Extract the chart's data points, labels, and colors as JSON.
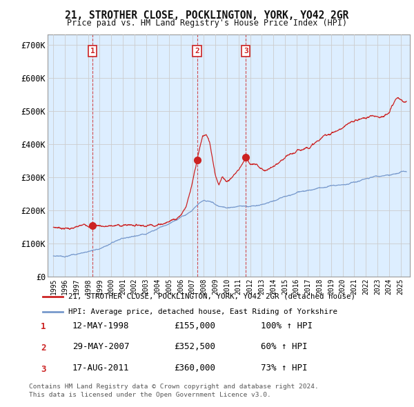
{
  "title": "21, STROTHER CLOSE, POCKLINGTON, YORK, YO42 2GR",
  "subtitle": "Price paid vs. HM Land Registry's House Price Index (HPI)",
  "legend_line1": "21, STROTHER CLOSE, POCKLINGTON, YORK, YO42 2GR (detached house)",
  "legend_line2": "HPI: Average price, detached house, East Riding of Yorkshire",
  "footer1": "Contains HM Land Registry data © Crown copyright and database right 2024.",
  "footer2": "This data is licensed under the Open Government Licence v3.0.",
  "transactions": [
    {
      "num": 1,
      "date": "12-MAY-1998",
      "price": "£155,000",
      "pct": "100% ↑ HPI",
      "year": 1998.37,
      "value": 155000
    },
    {
      "num": 2,
      "date": "29-MAY-2007",
      "price": "£352,500",
      "pct": "60% ↑ HPI",
      "year": 2007.41,
      "value": 352500
    },
    {
      "num": 3,
      "date": "17-AUG-2011",
      "price": "£360,000",
      "pct": "73% ↑ HPI",
      "year": 2011.63,
      "value": 360000
    }
  ],
  "red_line_color": "#cc2222",
  "blue_line_color": "#7799cc",
  "grid_color": "#cccccc",
  "chart_bg_color": "#ddeeff",
  "background_color": "#ffffff",
  "ylim": [
    0,
    730000
  ],
  "yticks": [
    0,
    100000,
    200000,
    300000,
    400000,
    500000,
    600000,
    700000
  ],
  "ytick_labels": [
    "£0",
    "£100K",
    "£200K",
    "£300K",
    "£400K",
    "£500K",
    "£600K",
    "£700K"
  ],
  "xlim_start": 1994.5,
  "xlim_end": 2025.8,
  "red_knots_x": [
    1995,
    1996,
    1997,
    1998.37,
    1999,
    2000,
    2001,
    2002,
    2003,
    2004,
    2005,
    2006,
    2006.5,
    2007.0,
    2007.41,
    2007.7,
    2007.9,
    2008.2,
    2008.5,
    2009.0,
    2009.3,
    2009.6,
    2010.0,
    2010.5,
    2011.0,
    2011.3,
    2011.63,
    2012,
    2012.5,
    2013,
    2013.5,
    2014,
    2014.5,
    2015,
    2015.5,
    2016,
    2016.5,
    2017,
    2017.5,
    2018,
    2018.5,
    2019,
    2019.5,
    2020,
    2020.5,
    2021,
    2021.3,
    2021.6,
    2022,
    2022.5,
    2023,
    2023.5,
    2024,
    2024.3,
    2024.6,
    2025.0,
    2025.3
  ],
  "red_knots_y": [
    148000,
    149000,
    150000,
    155000,
    157000,
    159000,
    161000,
    165000,
    170000,
    178000,
    192000,
    215000,
    240000,
    290000,
    352500,
    400000,
    430000,
    440000,
    420000,
    335000,
    310000,
    330000,
    320000,
    325000,
    335000,
    345000,
    360000,
    352000,
    358000,
    358000,
    362000,
    370000,
    375000,
    385000,
    392000,
    398000,
    408000,
    418000,
    430000,
    440000,
    452000,
    462000,
    470000,
    478000,
    485000,
    492000,
    498000,
    502000,
    505000,
    510000,
    512000,
    518000,
    522000,
    545000,
    565000,
    555000,
    548000
  ],
  "blue_knots_x": [
    1995,
    1996,
    1997,
    1998,
    1999,
    2000,
    2001,
    2002,
    2003,
    2004,
    2005,
    2006,
    2007,
    2007.5,
    2008,
    2008.5,
    2009,
    2009.5,
    2010,
    2010.5,
    2011,
    2011.5,
    2012,
    2012.5,
    2013,
    2013.5,
    2014,
    2014.5,
    2015,
    2015.5,
    2016,
    2016.5,
    2017,
    2017.5,
    2018,
    2018.5,
    2019,
    2019.5,
    2020,
    2020.5,
    2021,
    2021.5,
    2022,
    2022.5,
    2023,
    2023.5,
    2024,
    2024.5,
    2025.3
  ],
  "blue_knots_y": [
    62000,
    65000,
    72000,
    80000,
    90000,
    100000,
    110000,
    120000,
    130000,
    143000,
    158000,
    178000,
    200000,
    215000,
    225000,
    222000,
    210000,
    205000,
    202000,
    205000,
    208000,
    210000,
    210000,
    212000,
    215000,
    218000,
    222000,
    228000,
    235000,
    240000,
    245000,
    250000,
    255000,
    260000,
    265000,
    270000,
    275000,
    278000,
    280000,
    282000,
    290000,
    298000,
    305000,
    308000,
    312000,
    315000,
    318000,
    320000,
    325000
  ]
}
